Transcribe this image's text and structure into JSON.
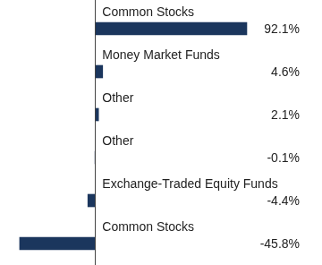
{
  "chart_data": {
    "type": "bar",
    "orientation": "horizontal",
    "categories": [
      "Common Stocks",
      "Money Market Funds",
      "Other",
      "Other",
      "Exchange-Traded Equity Funds",
      "Common Stocks"
    ],
    "values": [
      92.1,
      4.6,
      2.1,
      -0.1,
      -4.4,
      -45.8
    ],
    "value_labels": [
      "92.1%",
      "4.6%",
      "2.1%",
      "-0.1%",
      "-4.4%",
      "-45.8%"
    ],
    "color": "#1b365d",
    "xlim": [
      -55,
      135
    ],
    "grid": false,
    "data_labels": true,
    "tick_labels": false
  }
}
